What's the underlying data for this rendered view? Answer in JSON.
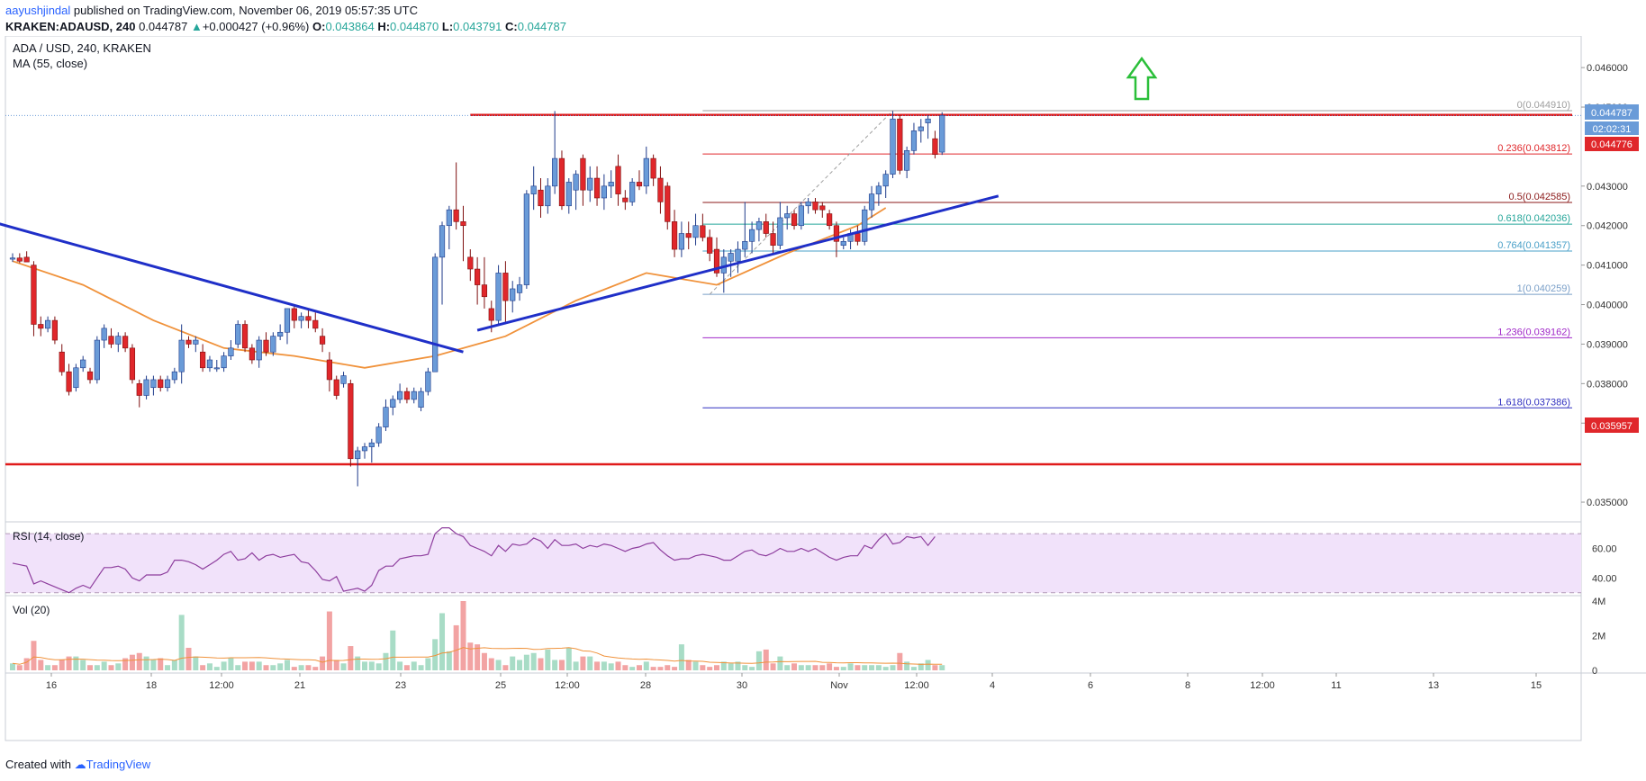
{
  "header": {
    "author": "aayushjindal",
    "published_text": "published on TradingView.com, November 06, 2019 05:57:35 UTC",
    "symbol": "KRAKEN:ADAUSD, 240",
    "last": "0.044787",
    "change_arrow": "▲",
    "change": "+0.000427 (+0.96%)",
    "o_label": "O:",
    "o": "0.043864",
    "h_label": "H:",
    "h": "0.044870",
    "l_label": "L:",
    "l": "0.043791",
    "c_label": "C:",
    "c": "0.044787"
  },
  "legend": {
    "title": "ADA / USD, 240, KRAKEN",
    "ma": "MA (55, close)",
    "rsi": "RSI (14, close)",
    "vol": "Vol (20)"
  },
  "footer": {
    "created_with": "Created with",
    "brand": "TradingView"
  },
  "colors": {
    "up": "#6a9bd8",
    "down": "#e0272b",
    "up_border": "#1e3a8a",
    "down_border": "#7f1010",
    "ma": "#f0923b",
    "trendline": "#1f2fc8",
    "level": "#e01a1a",
    "rsi_line": "#8e3e9e",
    "rsi_band": "#f1e2fa",
    "vol_up": "#a8dcc6",
    "vol_down": "#f2a3a3",
    "arrow": "#2bbf3a"
  },
  "chart_data": {
    "type": "candlestick",
    "symbol": "ADA / USD",
    "timeframe": "240",
    "exchange": "KRAKEN",
    "ylim": [
      0.0345,
      0.0468
    ],
    "price_ticks": [
      "0.046000",
      "0.045000",
      "0.043000",
      "0.042000",
      "0.041000",
      "0.040000",
      "0.039000",
      "0.038000",
      "0.037000",
      "0.035000"
    ],
    "x_tick_labels": [
      "16",
      "18",
      "12:00",
      "21",
      "23",
      "25",
      "12:00",
      "28",
      "30",
      "Nov",
      "12:00",
      "4",
      "6",
      "8",
      "12:00",
      "11",
      "13",
      "15"
    ],
    "price_labels": {
      "last": "0.044787",
      "countdown": "02:02:31",
      "line1": "0.044776",
      "support": "0.035957"
    },
    "candles": [
      [
        0.04115,
        0.0413,
        0.04108,
        0.04118
      ],
      [
        0.04118,
        0.0413,
        0.04105,
        0.0411
      ],
      [
        0.0412,
        0.04135,
        0.0411,
        0.04108
      ],
      [
        0.041,
        0.0411,
        0.0392,
        0.0395
      ],
      [
        0.0395,
        0.0397,
        0.0392,
        0.0394
      ],
      [
        0.0394,
        0.0397,
        0.0393,
        0.0396
      ],
      [
        0.0396,
        0.0397,
        0.039,
        0.0391
      ],
      [
        0.0388,
        0.039,
        0.0382,
        0.0383
      ],
      [
        0.0383,
        0.0385,
        0.0377,
        0.0378
      ],
      [
        0.0379,
        0.0385,
        0.0378,
        0.0384
      ],
      [
        0.0384,
        0.0387,
        0.0383,
        0.0386
      ],
      [
        0.0383,
        0.0384,
        0.038,
        0.0381
      ],
      [
        0.0381,
        0.0392,
        0.038,
        0.0391
      ],
      [
        0.0391,
        0.0395,
        0.0389,
        0.0394
      ],
      [
        0.0392,
        0.0394,
        0.0389,
        0.039
      ],
      [
        0.039,
        0.0393,
        0.0388,
        0.0392
      ],
      [
        0.0392,
        0.0393,
        0.0388,
        0.0389
      ],
      [
        0.0389,
        0.039,
        0.038,
        0.0381
      ],
      [
        0.038,
        0.0381,
        0.0374,
        0.0377
      ],
      [
        0.0377,
        0.0382,
        0.0376,
        0.0381
      ],
      [
        0.0379,
        0.0382,
        0.0377,
        0.0381
      ],
      [
        0.0381,
        0.0382,
        0.0378,
        0.0379
      ],
      [
        0.0379,
        0.0382,
        0.0378,
        0.0381
      ],
      [
        0.0381,
        0.0384,
        0.038,
        0.0383
      ],
      [
        0.0383,
        0.0395,
        0.038,
        0.0391
      ],
      [
        0.0391,
        0.0392,
        0.0389,
        0.039
      ],
      [
        0.039,
        0.0392,
        0.0388,
        0.0391
      ],
      [
        0.0388,
        0.039,
        0.0383,
        0.0384
      ],
      [
        0.0384,
        0.0387,
        0.0383,
        0.0386
      ],
      [
        0.0384,
        0.0386,
        0.0383,
        0.0384
      ],
      [
        0.0384,
        0.0388,
        0.0383,
        0.0387
      ],
      [
        0.0387,
        0.0391,
        0.0386,
        0.0389
      ],
      [
        0.039,
        0.0396,
        0.0389,
        0.0395
      ],
      [
        0.0395,
        0.0396,
        0.0388,
        0.0389
      ],
      [
        0.0389,
        0.039,
        0.0385,
        0.0386
      ],
      [
        0.0386,
        0.0392,
        0.0384,
        0.0391
      ],
      [
        0.0391,
        0.0393,
        0.0387,
        0.0388
      ],
      [
        0.0388,
        0.0393,
        0.0387,
        0.0392
      ],
      [
        0.0392,
        0.0395,
        0.0391,
        0.0393
      ],
      [
        0.0393,
        0.0399,
        0.039,
        0.0399
      ],
      [
        0.0399,
        0.04,
        0.0394,
        0.0396
      ],
      [
        0.0396,
        0.0398,
        0.0394,
        0.0397
      ],
      [
        0.0397,
        0.0399,
        0.0394,
        0.0396
      ],
      [
        0.0396,
        0.0398,
        0.0393,
        0.0394
      ],
      [
        0.0392,
        0.0394,
        0.0388,
        0.039
      ],
      [
        0.0386,
        0.0388,
        0.0378,
        0.0381
      ],
      [
        0.0381,
        0.0382,
        0.0376,
        0.0377
      ],
      [
        0.038,
        0.0383,
        0.0379,
        0.0382
      ],
      [
        0.038,
        0.0381,
        0.0359,
        0.0361
      ],
      [
        0.0361,
        0.0364,
        0.0354,
        0.0363
      ],
      [
        0.0363,
        0.0365,
        0.0361,
        0.0364
      ],
      [
        0.0364,
        0.0366,
        0.036,
        0.0365
      ],
      [
        0.0365,
        0.037,
        0.0364,
        0.0369
      ],
      [
        0.0369,
        0.0376,
        0.0368,
        0.0374
      ],
      [
        0.0374,
        0.0377,
        0.0372,
        0.0376
      ],
      [
        0.0376,
        0.038,
        0.0375,
        0.0378
      ],
      [
        0.0378,
        0.0379,
        0.0375,
        0.0376
      ],
      [
        0.0376,
        0.0379,
        0.0375,
        0.0378
      ],
      [
        0.0374,
        0.0379,
        0.0373,
        0.0378
      ],
      [
        0.0378,
        0.0384,
        0.0377,
        0.0383
      ],
      [
        0.0383,
        0.0413,
        0.0383,
        0.0412
      ],
      [
        0.0412,
        0.0421,
        0.04,
        0.042
      ],
      [
        0.042,
        0.0425,
        0.0414,
        0.0424
      ],
      [
        0.0424,
        0.0436,
        0.0419,
        0.0421
      ],
      [
        0.0421,
        0.0425,
        0.0411,
        0.042
      ],
      [
        0.0412,
        0.0414,
        0.0406,
        0.0409
      ],
      [
        0.0409,
        0.0412,
        0.04,
        0.0405
      ],
      [
        0.0405,
        0.0412,
        0.0399,
        0.0402
      ],
      [
        0.0399,
        0.0401,
        0.0393,
        0.0396
      ],
      [
        0.0396,
        0.041,
        0.0395,
        0.0408
      ],
      [
        0.0408,
        0.0411,
        0.0395,
        0.0401
      ],
      [
        0.0401,
        0.0406,
        0.0398,
        0.0404
      ],
      [
        0.0403,
        0.0407,
        0.0401,
        0.0405
      ],
      [
        0.0405,
        0.0429,
        0.0404,
        0.0428
      ],
      [
        0.0428,
        0.0435,
        0.0424,
        0.043
      ],
      [
        0.0429,
        0.0432,
        0.0422,
        0.0425
      ],
      [
        0.0425,
        0.0432,
        0.0423,
        0.043
      ],
      [
        0.043,
        0.0449,
        0.0428,
        0.0437
      ],
      [
        0.0437,
        0.0439,
        0.0424,
        0.0425
      ],
      [
        0.0425,
        0.0432,
        0.0423,
        0.0431
      ],
      [
        0.0429,
        0.0434,
        0.0424,
        0.0433
      ],
      [
        0.0437,
        0.0438,
        0.0425,
        0.0429
      ],
      [
        0.0429,
        0.0435,
        0.0426,
        0.0432
      ],
      [
        0.0432,
        0.0435,
        0.0425,
        0.0427
      ],
      [
        0.0427,
        0.0433,
        0.0424,
        0.043
      ],
      [
        0.043,
        0.0434,
        0.0427,
        0.0431
      ],
      [
        0.0435,
        0.0438,
        0.0425,
        0.0428
      ],
      [
        0.0427,
        0.0429,
        0.0424,
        0.0426
      ],
      [
        0.0426,
        0.0432,
        0.0425,
        0.0431
      ],
      [
        0.0431,
        0.0434,
        0.0429,
        0.043
      ],
      [
        0.043,
        0.044,
        0.0428,
        0.0437
      ],
      [
        0.0437,
        0.0438,
        0.043,
        0.0432
      ],
      [
        0.0432,
        0.0435,
        0.0423,
        0.0426
      ],
      [
        0.043,
        0.0431,
        0.0419,
        0.0421
      ],
      [
        0.0421,
        0.0424,
        0.0412,
        0.0414
      ],
      [
        0.0414,
        0.0421,
        0.0412,
        0.0418
      ],
      [
        0.0418,
        0.0421,
        0.0414,
        0.0417
      ],
      [
        0.0417,
        0.0423,
        0.0415,
        0.042
      ],
      [
        0.042,
        0.0423,
        0.0416,
        0.0417
      ],
      [
        0.0417,
        0.0419,
        0.0411,
        0.0413
      ],
      [
        0.0414,
        0.0417,
        0.0407,
        0.0408
      ],
      [
        0.0408,
        0.0414,
        0.0403,
        0.0412
      ],
      [
        0.0411,
        0.0414,
        0.0407,
        0.0413
      ],
      [
        0.0411,
        0.0416,
        0.0408,
        0.0414
      ],
      [
        0.0414,
        0.0426,
        0.0412,
        0.0416
      ],
      [
        0.0416,
        0.0421,
        0.0413,
        0.0419
      ],
      [
        0.0419,
        0.0422,
        0.0416,
        0.0421
      ],
      [
        0.0421,
        0.0423,
        0.0417,
        0.0418
      ],
      [
        0.0418,
        0.0421,
        0.0413,
        0.0415
      ],
      [
        0.0415,
        0.0426,
        0.0414,
        0.0422
      ],
      [
        0.0422,
        0.0425,
        0.0419,
        0.0423
      ],
      [
        0.0423,
        0.0424,
        0.0419,
        0.042
      ],
      [
        0.042,
        0.0426,
        0.0419,
        0.0425
      ],
      [
        0.0425,
        0.0427,
        0.0423,
        0.0426
      ],
      [
        0.0426,
        0.0427,
        0.0423,
        0.0424
      ],
      [
        0.0425,
        0.0426,
        0.0422,
        0.0424
      ],
      [
        0.0423,
        0.0424,
        0.0419,
        0.042
      ],
      [
        0.042,
        0.0421,
        0.0412,
        0.0416
      ],
      [
        0.0415,
        0.0417,
        0.0414,
        0.0416
      ],
      [
        0.0416,
        0.0419,
        0.0414,
        0.0418
      ],
      [
        0.0418,
        0.042,
        0.0415,
        0.0416
      ],
      [
        0.0416,
        0.0425,
        0.0415,
        0.0424
      ],
      [
        0.0424,
        0.043,
        0.0422,
        0.0428
      ],
      [
        0.0428,
        0.0431,
        0.0425,
        0.043
      ],
      [
        0.043,
        0.0434,
        0.0427,
        0.0433
      ],
      [
        0.0433,
        0.0449,
        0.0432,
        0.0447
      ],
      [
        0.0447,
        0.0448,
        0.0433,
        0.0434
      ],
      [
        0.0434,
        0.044,
        0.0432,
        0.0439
      ],
      [
        0.0439,
        0.0446,
        0.0438,
        0.0444
      ],
      [
        0.0444,
        0.0447,
        0.0441,
        0.0445
      ],
      [
        0.0446,
        0.0448,
        0.0442,
        0.0447
      ],
      [
        0.0442,
        0.0444,
        0.0437,
        0.0438
      ],
      [
        0.04386,
        0.04487,
        0.04379,
        0.04479
      ]
    ],
    "ma55": {
      "x": [
        0,
        10,
        20,
        30,
        40,
        50,
        60,
        70,
        80,
        90,
        100,
        110,
        120,
        124
      ],
      "values": [
        0.0411,
        0.0405,
        0.0396,
        0.0389,
        0.0387,
        0.0384,
        0.0387,
        0.0392,
        0.0401,
        0.0408,
        0.0405,
        0.0413,
        0.042,
        0.04245
      ]
    },
    "fibonacci": [
      {
        "ratio": "0",
        "label": "0(0.044910)",
        "value": 0.04491,
        "color": "#9e9e9e"
      },
      {
        "ratio": "0.236",
        "label": "0.236(0.043812)",
        "value": 0.043812,
        "color": "#e0272b"
      },
      {
        "ratio": "0.5",
        "label": "0.5(0.042585)",
        "value": 0.042585,
        "color": "#8b1a1a"
      },
      {
        "ratio": "0.618",
        "label": "0.618(0.042036)",
        "value": 0.042036,
        "color": "#26a69a"
      },
      {
        "ratio": "0.764",
        "label": "0.764(0.041357)",
        "value": 0.041357,
        "color": "#4aa0c8"
      },
      {
        "ratio": "1",
        "label": "1(0.040259)",
        "value": 0.040259,
        "color": "#7a9fc8"
      },
      {
        "ratio": "1.236",
        "label": "1.236(0.039162)",
        "value": 0.039162,
        "color": "#a028c8"
      },
      {
        "ratio": "1.618",
        "label": "1.618(0.037386)",
        "value": 0.037386,
        "color": "#3030c0"
      }
    ],
    "levels": [
      0.0448,
      0.035957
    ],
    "trendlines": [
      {
        "from": [
          -2,
          0.04205
        ],
        "to": [
          64,
          0.0388
        ]
      },
      {
        "from": [
          66,
          0.03935
        ],
        "to": [
          140,
          0.04275
        ]
      }
    ],
    "rsi": {
      "ylim": [
        28,
        78
      ],
      "ticks": [
        "60.00",
        "40.00"
      ],
      "band": [
        70,
        30
      ],
      "values": [
        50,
        49,
        48,
        36,
        38,
        36,
        34,
        32,
        30,
        33,
        35,
        33,
        40,
        47,
        47,
        48,
        46,
        40,
        38,
        42,
        42,
        42,
        44,
        52,
        52,
        51,
        49,
        46,
        49,
        52,
        56,
        58,
        52,
        53,
        57,
        52,
        55,
        56,
        54,
        55,
        56,
        51,
        50,
        45,
        39,
        38,
        41,
        31,
        32,
        33,
        31,
        35,
        45,
        48,
        48,
        53,
        54,
        55,
        55,
        56,
        70,
        74,
        74,
        70,
        68,
        62,
        60,
        58,
        55,
        62,
        58,
        63,
        62,
        63,
        67,
        65,
        60,
        66,
        62,
        62,
        63,
        60,
        62,
        61,
        63,
        62,
        60,
        58,
        60,
        61,
        63,
        64,
        59,
        55,
        52,
        53,
        53,
        55,
        56,
        55,
        54,
        52,
        52,
        55,
        58,
        59,
        56,
        55,
        57,
        60,
        58,
        58,
        60,
        58,
        60,
        57,
        54,
        52,
        54,
        55,
        55,
        62,
        60,
        66,
        70,
        63,
        64,
        68,
        67,
        68,
        62,
        68
      ]
    },
    "volume": {
      "ylim": [
        0,
        4000000
      ],
      "ticks": [
        "4M",
        "2M",
        "0"
      ],
      "values": [
        0.4,
        0.3,
        0.7,
        1.7,
        0.6,
        0.3,
        0.3,
        0.6,
        0.8,
        0.8,
        0.6,
        0.3,
        0.3,
        0.5,
        0.3,
        0.4,
        0.7,
        0.9,
        1.0,
        0.8,
        0.6,
        0.7,
        0.3,
        0.6,
        3.2,
        1.3,
        0.8,
        0.3,
        0.4,
        0.2,
        0.5,
        0.7,
        0.3,
        0.5,
        0.5,
        0.5,
        0.3,
        0.3,
        0.4,
        0.6,
        0.2,
        0.3,
        0.3,
        0.2,
        0.8,
        3.4,
        0.6,
        0.4,
        1.4,
        0.8,
        0.5,
        0.5,
        0.4,
        1.0,
        2.3,
        0.5,
        0.3,
        0.5,
        0.3,
        0.7,
        1.8,
        3.3,
        1.1,
        2.6,
        4.0,
        1.6,
        1.5,
        1.0,
        0.7,
        0.6,
        0.3,
        0.8,
        0.6,
        0.9,
        1.0,
        0.7,
        1.2,
        0.6,
        0.6,
        1.3,
        0.5,
        0.8,
        0.8,
        0.5,
        0.5,
        0.4,
        0.5,
        0.3,
        0.2,
        0.3,
        0.5,
        0.2,
        0.2,
        0.3,
        0.2,
        1.5,
        0.6,
        0.5,
        0.3,
        0.2,
        0.3,
        0.5,
        0.4,
        0.5,
        0.3,
        0.2,
        1.1,
        1.2,
        0.4,
        0.8,
        0.3,
        0.4,
        0.3,
        0.3,
        0.3,
        0.3,
        0.4,
        0.2,
        0.2,
        0.4,
        0.3,
        0.3,
        0.3,
        0.3,
        0.2,
        0.3,
        1.0,
        0.5,
        0.2,
        0.4,
        0.6,
        0.3,
        0.3
      ]
    }
  }
}
